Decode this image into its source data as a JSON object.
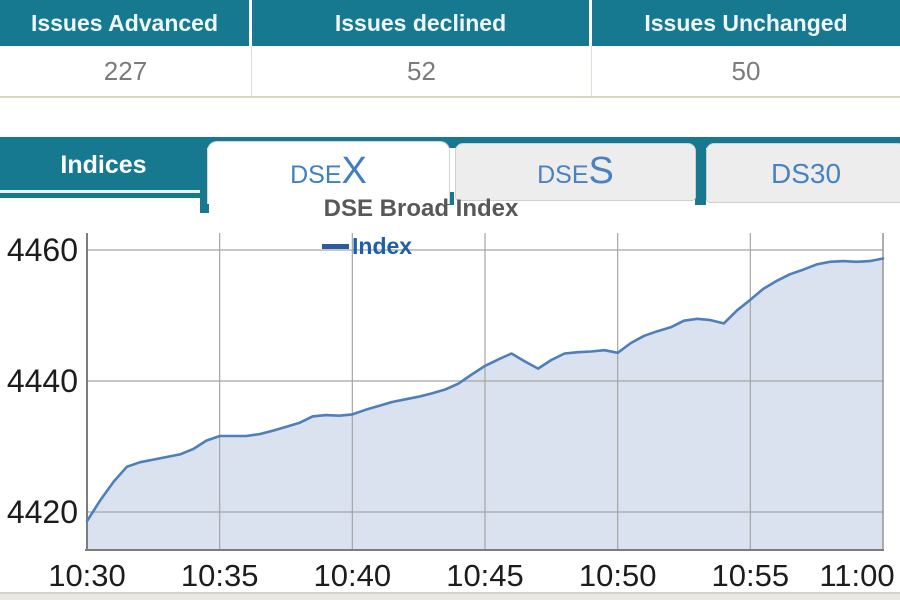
{
  "summary_table": {
    "columns": [
      {
        "header": "Issues Advanced",
        "value": "227"
      },
      {
        "header": "Issues declined",
        "value": "52"
      },
      {
        "header": "Issues Unchanged",
        "value": "50"
      }
    ]
  },
  "tabs": {
    "panel_label": "Indices",
    "items": [
      {
        "id": "dsex",
        "prefix": "DSE",
        "suffix": "X",
        "active": true
      },
      {
        "id": "dses",
        "prefix": "DSE",
        "suffix": "S",
        "active": false
      },
      {
        "id": "ds30",
        "prefix": "DS30",
        "suffix": "",
        "active": false
      }
    ]
  },
  "chart_data": {
    "type": "area",
    "title": "DSE Broad Index",
    "legend": [
      "Index"
    ],
    "legend_position": "top",
    "grid": true,
    "x_tick_labels": [
      "10:30",
      "10:35",
      "10:40",
      "10:45",
      "10:50",
      "10:55",
      "11:00"
    ],
    "x_step_min": 0.5,
    "x_range_min": [
      0,
      30
    ],
    "y_tick_values": [
      4420,
      4440,
      4460
    ],
    "y_tick_labels": [
      "4420",
      "4440",
      "4460"
    ],
    "ylim": [
      4414,
      4462
    ],
    "series": [
      {
        "name": "Index",
        "values": [
          4418.6,
          4421.8,
          4424.6,
          4426.9,
          4427.6,
          4428.0,
          4428.4,
          4428.8,
          4429.6,
          4430.9,
          4431.6,
          4431.6,
          4431.6,
          4431.9,
          4432.4,
          4433.0,
          4433.6,
          4434.6,
          4434.8,
          4434.7,
          4434.9,
          4435.6,
          4436.2,
          4436.8,
          4437.2,
          4437.6,
          4438.1,
          4438.7,
          4439.6,
          4441.0,
          4442.3,
          4443.3,
          4444.2,
          4443.0,
          4441.9,
          4443.2,
          4444.2,
          4444.4,
          4444.5,
          4444.7,
          4444.3,
          4445.8,
          4446.9,
          4447.6,
          4448.2,
          4449.2,
          4449.5,
          4449.3,
          4448.8,
          4450.8,
          4452.4,
          4454.1,
          4455.3,
          4456.3,
          4457.0,
          4457.8,
          4458.2,
          4458.3,
          4458.2,
          4458.3,
          4458.7
        ]
      }
    ],
    "colors": {
      "line": "#4e7fba",
      "fill": "#dbe2ef",
      "legend": "#1d5fa9",
      "title": "#57585a",
      "tick": "#1c1c1c",
      "grid": "#a5a5a5",
      "axis": "#7d7d7d"
    }
  },
  "theme": {
    "teal": "#17798f",
    "tab_text_blue": "#3e7fc6",
    "header_text": "#eef6f7",
    "value_text": "#7b7b7b",
    "value_border": "#d9d6c1",
    "tab_gray": "#ededed"
  }
}
